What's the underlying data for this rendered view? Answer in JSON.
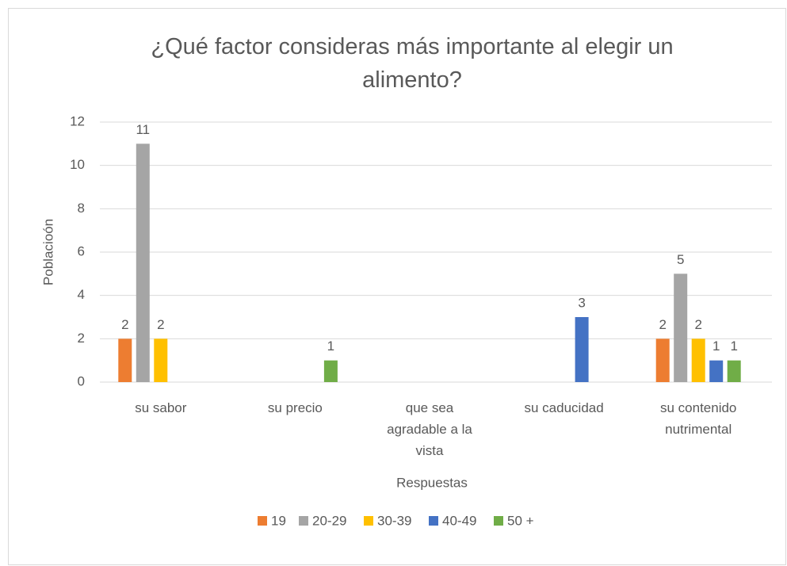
{
  "chart_data": {
    "type": "bar",
    "title": "¿Qué factor consideras más importante al elegir un alimento?",
    "x_label": "Respuestas",
    "y_label": "Poblacioón",
    "categories": [
      "su sabor",
      "su precio",
      "que sea agradable a la vista",
      "su caducidad",
      "su contenido nutrimental"
    ],
    "series": [
      {
        "name": "19",
        "color": "#ed7d31",
        "values": [
          2,
          null,
          null,
          null,
          2
        ]
      },
      {
        "name": "20-29",
        "color": "#a5a5a5",
        "values": [
          11,
          null,
          null,
          null,
          5
        ]
      },
      {
        "name": "30-39",
        "color": "#ffc000",
        "values": [
          2,
          null,
          null,
          null,
          2
        ]
      },
      {
        "name": "40-49",
        "color": "#4472c4",
        "values": [
          null,
          null,
          null,
          3,
          1
        ]
      },
      {
        "name": "50 +",
        "color": "#70ad47",
        "values": [
          null,
          1,
          null,
          null,
          1
        ]
      }
    ],
    "ylim": [
      0,
      12
    ],
    "yticks": [
      0,
      2,
      4,
      6,
      8,
      10,
      12
    ],
    "grid": true,
    "legend": "bottom"
  }
}
